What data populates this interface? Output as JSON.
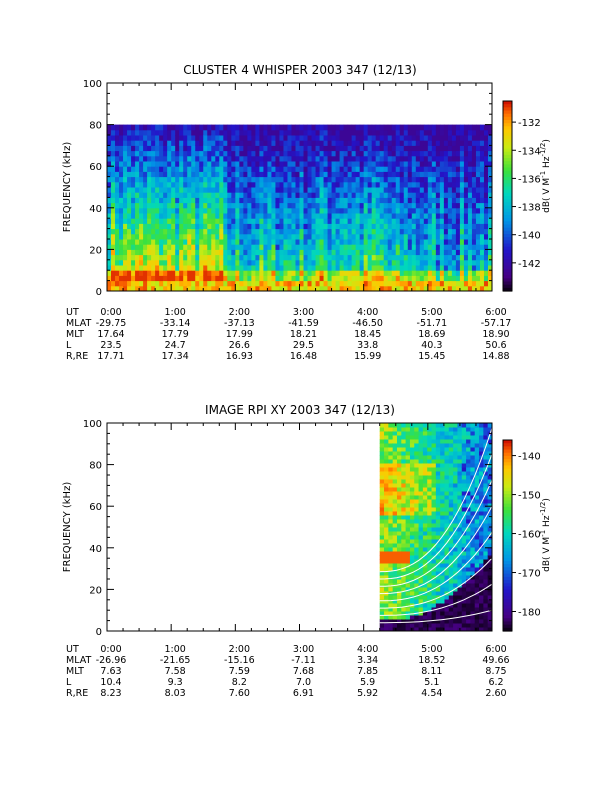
{
  "chart_data": [
    {
      "type": "heatmap",
      "title": "CLUSTER 4 WHISPER 2003 347 (12/13)",
      "ylabel": "FREQUENCY (kHz)",
      "ylim": [
        0,
        100
      ],
      "yticks": [
        "0",
        "20",
        "40",
        "60",
        "80",
        "100"
      ],
      "x_tick_labels": [
        "0:00",
        "1:00",
        "2:00",
        "3:00",
        "4:00",
        "5:00",
        "6:00"
      ],
      "colorbar": {
        "label": "dB( V M-1 Hz-1/2)",
        "range": [
          -144,
          -130.5
        ],
        "ticks": [
          "-132",
          "-134",
          "-136",
          "-138",
          "-140",
          "-142"
        ],
        "tick_values": [
          -132,
          -134,
          -136,
          -138,
          -140,
          -142
        ]
      },
      "ephemeris": {
        "labels": [
          "UT",
          "MLAT",
          "MLT",
          "L",
          "R,RE"
        ],
        "ut": [
          "0:00",
          "1:00",
          "2:00",
          "3:00",
          "4:00",
          "5:00",
          "6:00"
        ],
        "mlat": [
          "-29.75",
          "-33.14",
          "-37.13",
          "-41.59",
          "-46.50",
          "-51.71",
          "-57.17"
        ],
        "mlt": [
          "17.64",
          "17.79",
          "17.99",
          "18.21",
          "18.45",
          "18.69",
          "18.90"
        ],
        "l": [
          "23.5",
          "24.7",
          "26.6",
          "29.5",
          "33.8",
          "40.3",
          "50.6"
        ],
        "r_re": [
          "17.71",
          "17.34",
          "16.93",
          "16.48",
          "15.99",
          "15.45",
          "14.88"
        ]
      }
    },
    {
      "type": "heatmap",
      "title": "IMAGE RPI XY 2003 347 (12/13)",
      "ylabel": "FREQUENCY (kHz)",
      "ylim": [
        0,
        100
      ],
      "yticks": [
        "0",
        "20",
        "40",
        "60",
        "80",
        "100"
      ],
      "x_tick_labels": [
        "0:00",
        "1:00",
        "2:00",
        "3:00",
        "4:00",
        "5:00",
        "6:00"
      ],
      "colorbar": {
        "label": "dB( V M-1 Hz-1/2)",
        "range": [
          -185,
          -136
        ],
        "ticks": [
          "-140",
          "-150",
          "-160",
          "-170",
          "-180"
        ],
        "tick_values": [
          -140,
          -150,
          -160,
          -170,
          -180
        ]
      },
      "ephemeris": {
        "labels": [
          "UT",
          "MLAT",
          "MLT",
          "L",
          "R,RE"
        ],
        "ut": [
          "0:00",
          "1:00",
          "2:00",
          "3:00",
          "4:00",
          "5:00",
          "6:00"
        ],
        "mlat": [
          "-26.96",
          "-21.65",
          "-15.16",
          "-7.11",
          "3.34",
          "18.52",
          "49.66"
        ],
        "mlt": [
          "7.63",
          "7.58",
          "7.59",
          "7.68",
          "7.85",
          "8.11",
          "8.75"
        ],
        "l": [
          "10.4",
          "9.3",
          "8.2",
          "7.0",
          "5.9",
          "5.1",
          "6.2"
        ],
        "r_re": [
          "8.23",
          "8.03",
          "7.60",
          "6.91",
          "5.92",
          "4.54",
          "2.60"
        ]
      }
    }
  ]
}
